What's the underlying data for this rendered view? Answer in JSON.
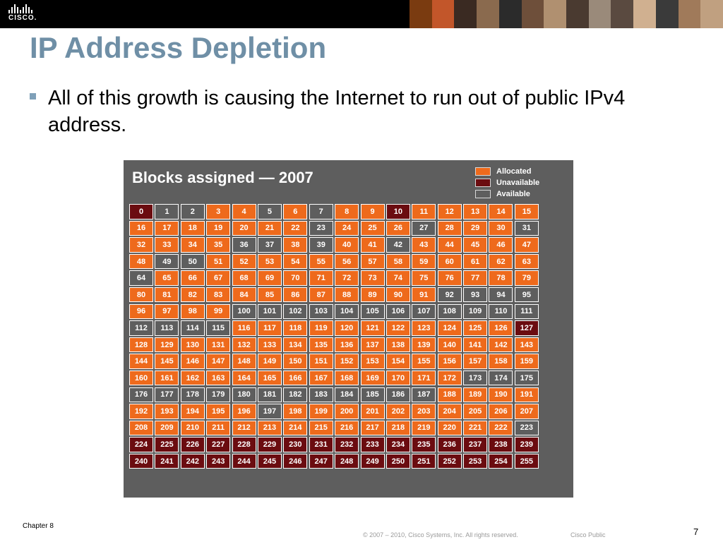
{
  "header": {
    "logo_text": "CISCO.",
    "photo_colors": [
      "#7a3b10",
      "#c2562a",
      "#3a2a22",
      "#8a6a4e",
      "#2b2b2b",
      "#6e4f3a",
      "#b09070",
      "#4a3a30",
      "#9a8a7a",
      "#5a4a40",
      "#d0b090",
      "#3a3a3a",
      "#a07a5a",
      "#c0a080"
    ]
  },
  "slide": {
    "title": "IP Address Depletion",
    "bullet": "All of this growth is causing the Internet to run out of public IPv4 address."
  },
  "chart": {
    "title": "Blocks assigned — 2007",
    "legend": [
      {
        "label": "Allocated",
        "color": "#ee6a1c"
      },
      {
        "label": "Unavailable",
        "color": "#6b0c10"
      },
      {
        "label": "Available",
        "color": "#5e5e5e"
      }
    ]
  },
  "chart_data": {
    "type": "table",
    "title": "Blocks assigned — 2007",
    "columns": 16,
    "blocks": [
      0,
      1,
      2,
      3,
      4,
      5,
      6,
      7,
      8,
      9,
      10,
      11,
      12,
      13,
      14,
      15,
      16,
      17,
      18,
      19,
      20,
      21,
      22,
      23,
      24,
      25,
      26,
      27,
      28,
      29,
      30,
      31,
      32,
      33,
      34,
      35,
      36,
      37,
      38,
      39,
      40,
      41,
      42,
      43,
      44,
      45,
      46,
      47,
      48,
      49,
      50,
      51,
      52,
      53,
      54,
      55,
      56,
      57,
      58,
      59,
      60,
      61,
      62,
      63,
      64,
      65,
      66,
      67,
      68,
      69,
      70,
      71,
      72,
      73,
      74,
      75,
      76,
      77,
      78,
      79,
      80,
      81,
      82,
      83,
      84,
      85,
      86,
      87,
      88,
      89,
      90,
      91,
      92,
      93,
      94,
      95,
      96,
      97,
      98,
      99,
      100,
      101,
      102,
      103,
      104,
      105,
      106,
      107,
      108,
      109,
      110,
      111,
      112,
      113,
      114,
      115,
      116,
      117,
      118,
      119,
      120,
      121,
      122,
      123,
      124,
      125,
      126,
      127,
      128,
      129,
      130,
      131,
      132,
      133,
      134,
      135,
      136,
      137,
      138,
      139,
      140,
      141,
      142,
      143,
      144,
      145,
      146,
      147,
      148,
      149,
      150,
      151,
      152,
      153,
      154,
      155,
      156,
      157,
      158,
      159,
      160,
      161,
      162,
      163,
      164,
      165,
      166,
      167,
      168,
      169,
      170,
      171,
      172,
      173,
      174,
      175,
      176,
      177,
      178,
      179,
      180,
      181,
      182,
      183,
      184,
      185,
      186,
      187,
      188,
      189,
      190,
      191,
      192,
      193,
      194,
      195,
      196,
      197,
      198,
      199,
      200,
      201,
      202,
      203,
      204,
      205,
      206,
      207,
      208,
      209,
      210,
      211,
      212,
      213,
      214,
      215,
      216,
      217,
      218,
      219,
      220,
      221,
      222,
      223,
      224,
      225,
      226,
      227,
      228,
      229,
      230,
      231,
      232,
      233,
      234,
      235,
      236,
      237,
      238,
      239,
      240,
      241,
      242,
      243,
      244,
      245,
      246,
      247,
      248,
      249,
      250,
      251,
      252,
      253,
      254,
      255
    ],
    "unavailable": [
      0,
      10,
      127,
      224,
      225,
      226,
      227,
      228,
      229,
      230,
      231,
      232,
      233,
      234,
      235,
      236,
      237,
      238,
      239,
      240,
      241,
      242,
      243,
      244,
      245,
      246,
      247,
      248,
      249,
      250,
      251,
      252,
      253,
      254,
      255
    ],
    "available": [
      1,
      2,
      5,
      7,
      23,
      27,
      31,
      36,
      37,
      39,
      42,
      49,
      50,
      64,
      92,
      93,
      94,
      95,
      100,
      101,
      102,
      103,
      104,
      105,
      106,
      107,
      108,
      109,
      110,
      111,
      112,
      113,
      114,
      115,
      173,
      174,
      175,
      176,
      177,
      178,
      179,
      180,
      181,
      182,
      183,
      184,
      185,
      186,
      187,
      197,
      223
    ],
    "default_status": "allocated"
  },
  "footer": {
    "chapter": "Chapter 8",
    "copyright": "© 2007 – 2010, Cisco Systems, Inc. All rights reserved.",
    "classification": "Cisco Public",
    "page_number": "7"
  }
}
